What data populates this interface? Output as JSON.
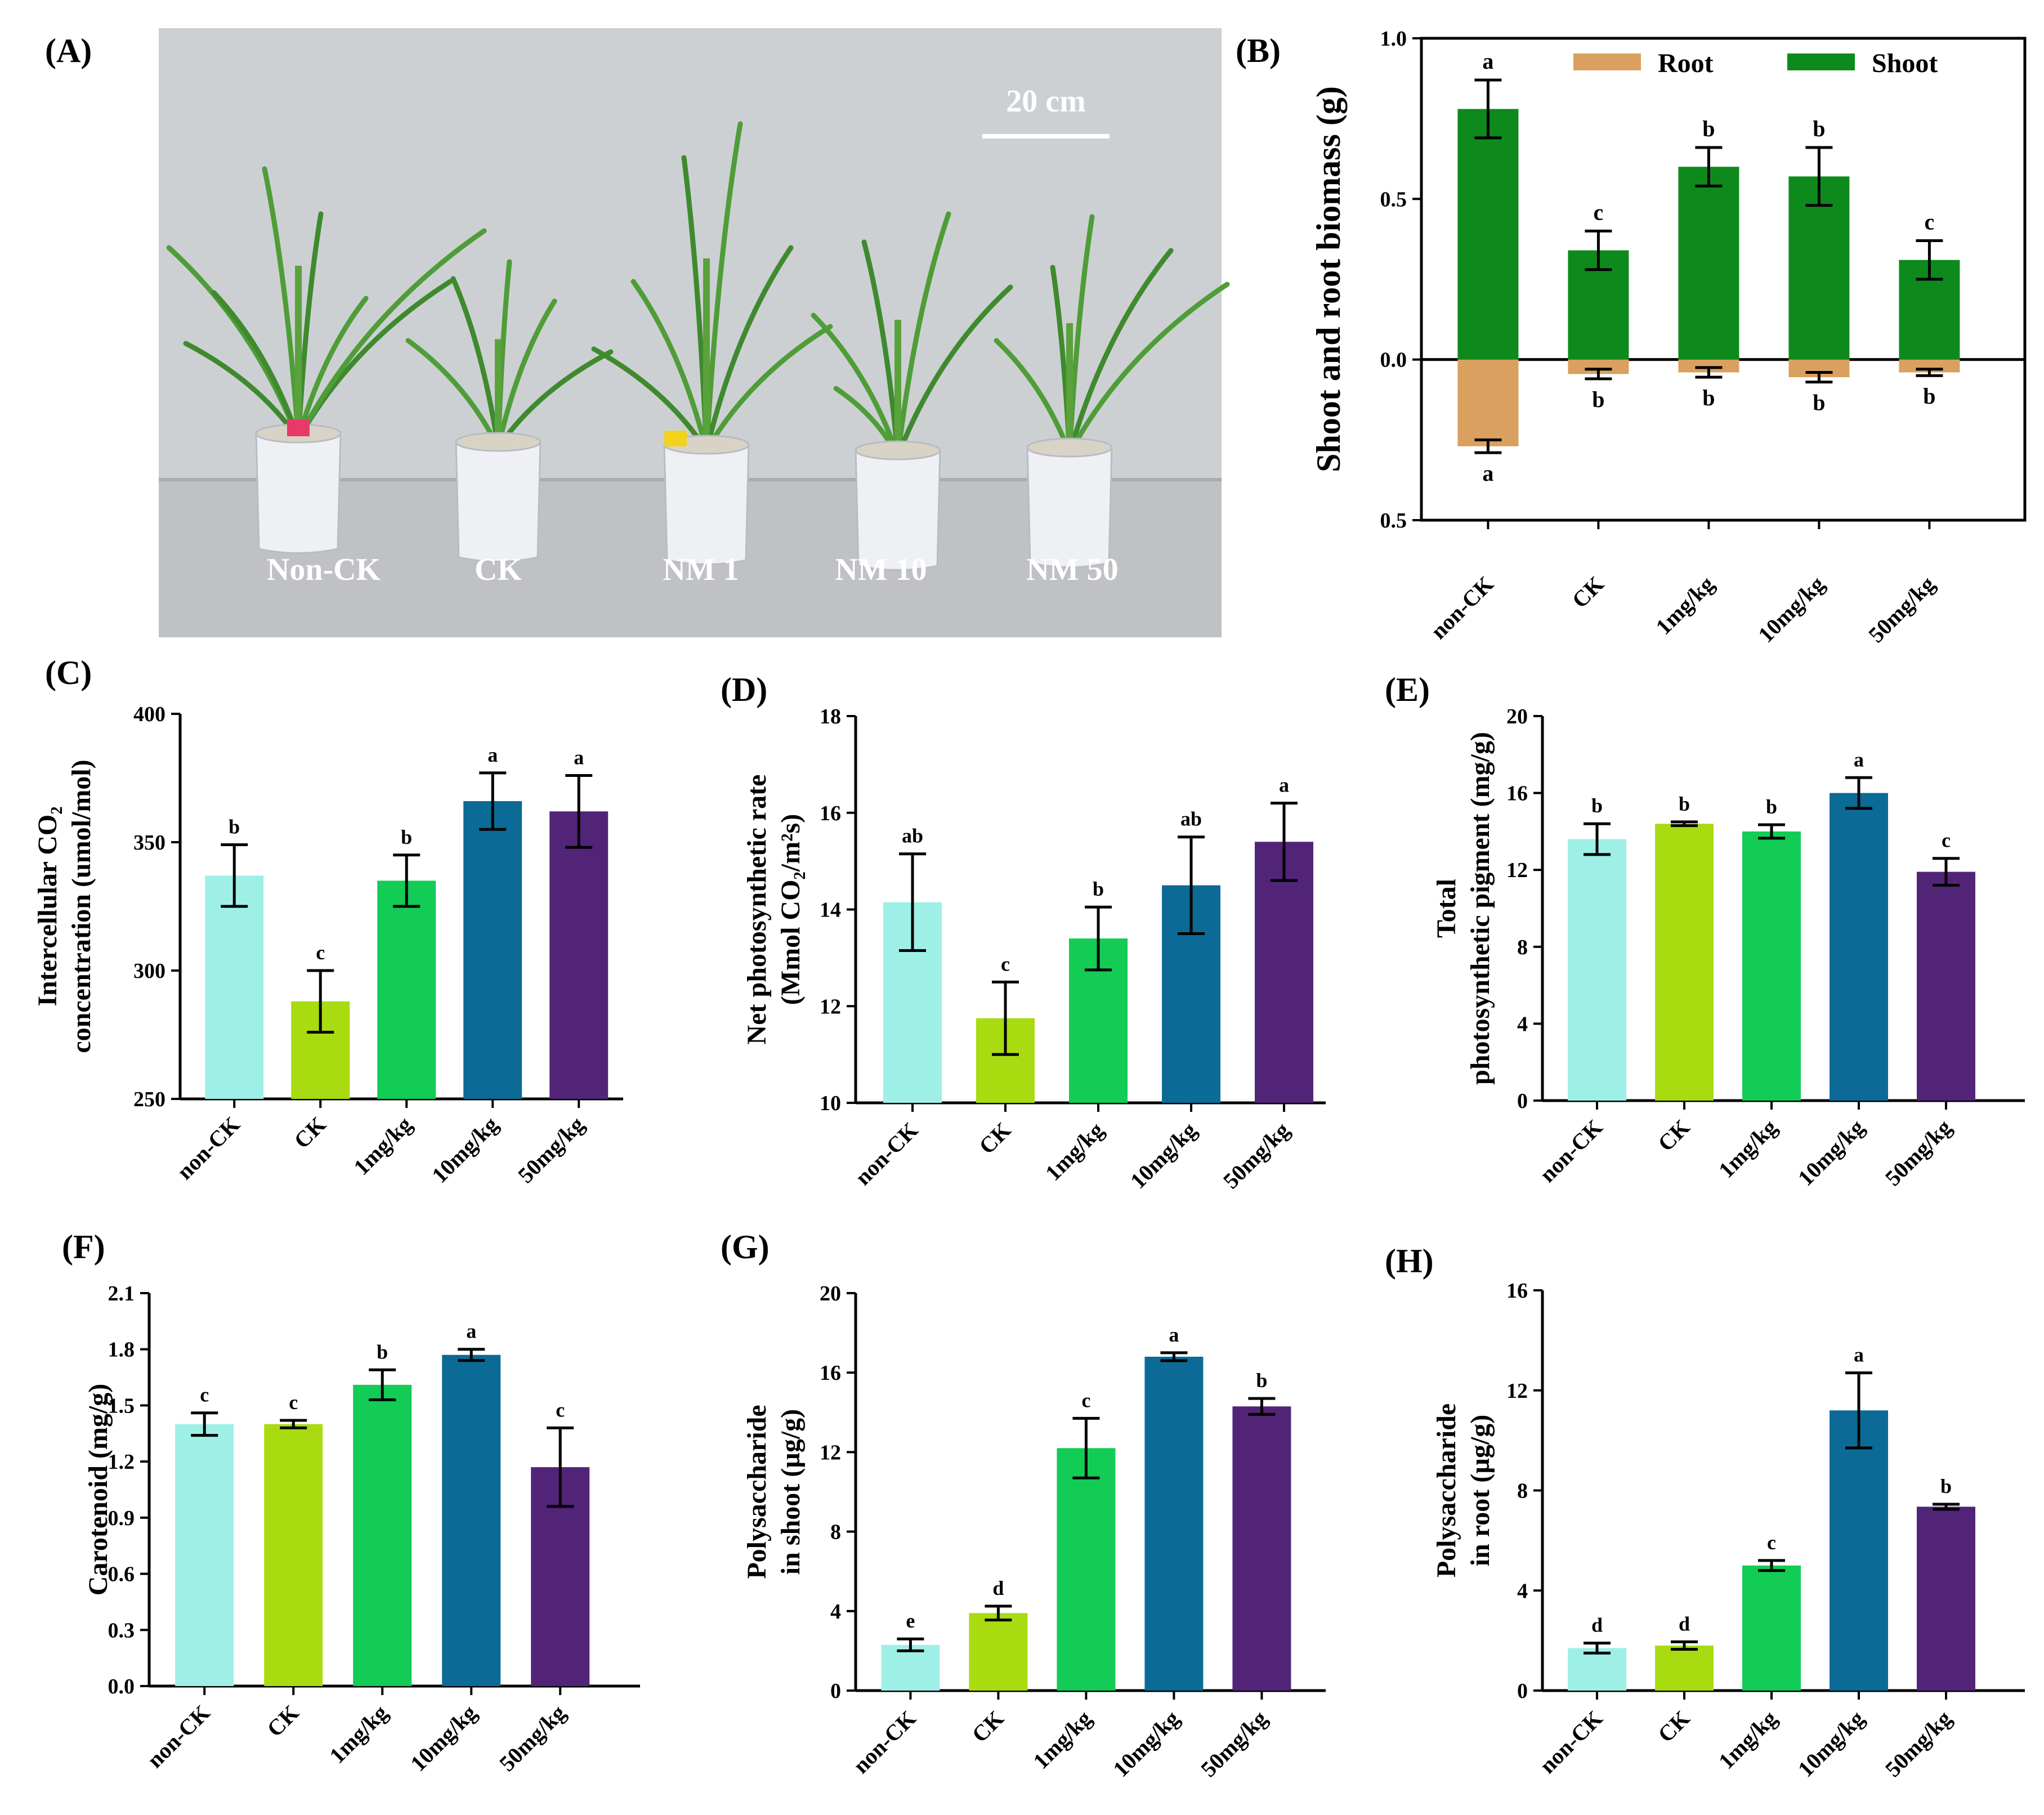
{
  "panels": {
    "A": "(A)",
    "B": "(B)",
    "C": "(C)",
    "D": "(D)",
    "E": "(E)",
    "F": "(F)",
    "G": "(G)",
    "H": "(H)"
  },
  "photo": {
    "scale_bar": "20 cm",
    "labels": [
      "Non-CK",
      "CK",
      "NM 1",
      "NM 10",
      "NM 50"
    ]
  },
  "colors": {
    "non_ck": "#9ef0e6",
    "ck": "#a8dc10",
    "nm1": "#12cc55",
    "nm10": "#0b6b96",
    "nm50": "#522478",
    "shoot": "#0e8a1c",
    "root": "#d9a060"
  },
  "chart_data": [
    {
      "id": "B",
      "type": "bar",
      "title": "",
      "ylabel": "Shoot and root biomass (g)",
      "categories": [
        "non-CK",
        "CK",
        "1mg/kg",
        "10mg/kg",
        "50mg/kg"
      ],
      "ylim": [
        -0.5,
        1.0
      ],
      "ticks": [
        -0.5,
        0.0,
        0.5,
        1.0
      ],
      "tick_labels": [
        "0.5",
        "0.0",
        "0.5",
        "1.0"
      ],
      "legend": [
        "Root",
        "Shoot"
      ],
      "series": [
        {
          "name": "Shoot",
          "values": [
            0.78,
            0.34,
            0.6,
            0.57,
            0.31
          ],
          "errors": [
            0.09,
            0.06,
            0.06,
            0.09,
            0.06
          ],
          "labels": [
            "a",
            "c",
            "b",
            "b",
            "c"
          ]
        },
        {
          "name": "Root",
          "values": [
            -0.27,
            -0.045,
            -0.04,
            -0.055,
            -0.04
          ],
          "errors": [
            0.02,
            0.015,
            0.015,
            0.015,
            0.01
          ],
          "labels": [
            "a",
            "b",
            "b",
            "b",
            "b"
          ]
        }
      ]
    },
    {
      "id": "C",
      "type": "bar",
      "ylabel_lines": [
        "Intercellular CO₂",
        "concentration (umol/mol)"
      ],
      "categories": [
        "non-CK",
        "CK",
        "1mg/kg",
        "10mg/kg",
        "50mg/kg"
      ],
      "ylim": [
        250,
        400
      ],
      "ticks": [
        250,
        300,
        350,
        400
      ],
      "tick_labels": [
        "250",
        "300",
        "350",
        "400"
      ],
      "values": [
        337,
        288,
        335,
        366,
        362
      ],
      "errors": [
        12,
        12,
        10,
        11,
        14
      ],
      "labels": [
        "b",
        "c",
        "b",
        "a",
        "a"
      ]
    },
    {
      "id": "D",
      "type": "bar",
      "ylabel_lines": [
        "Net photosynthetic rate",
        "(Mmol CO₂/m²s)"
      ],
      "categories": [
        "non-CK",
        "CK",
        "1mg/kg",
        "10mg/kg",
        "50mg/kg"
      ],
      "ylim": [
        10,
        18
      ],
      "ticks": [
        10,
        12,
        14,
        16,
        18
      ],
      "tick_labels": [
        "10",
        "12",
        "14",
        "16",
        "18"
      ],
      "values": [
        14.15,
        11.75,
        13.4,
        14.5,
        15.4
      ],
      "errors": [
        1.0,
        0.75,
        0.65,
        1.0,
        0.8
      ],
      "labels": [
        "ab",
        "c",
        "b",
        "ab",
        "a"
      ]
    },
    {
      "id": "E",
      "type": "bar",
      "ylabel_lines": [
        "Total",
        "photosynthetic pigment (mg/g)"
      ],
      "categories": [
        "non-CK",
        "CK",
        "1mg/kg",
        "10mg/kg",
        "50mg/kg"
      ],
      "ylim": [
        0,
        20
      ],
      "ticks": [
        0,
        4,
        8,
        12,
        16,
        20
      ],
      "tick_labels": [
        "0",
        "4",
        "8",
        "12",
        "16",
        "20"
      ],
      "values": [
        13.6,
        14.4,
        14.0,
        16.0,
        11.9
      ],
      "errors": [
        0.8,
        0.1,
        0.35,
        0.8,
        0.7
      ],
      "labels": [
        "b",
        "b",
        "b",
        "a",
        "c"
      ]
    },
    {
      "id": "F",
      "type": "bar",
      "ylabel_lines": [
        "Carotenoid (mg/g)"
      ],
      "categories": [
        "non-CK",
        "CK",
        "1mg/kg",
        "10mg/kg",
        "50mg/kg"
      ],
      "ylim": [
        0,
        2.1
      ],
      "ticks": [
        0,
        0.3,
        0.6,
        0.9,
        1.2,
        1.5,
        1.8,
        2.1
      ],
      "tick_labels": [
        "0.0",
        "0.3",
        "0.6",
        "0.9",
        "1.2",
        "1.5",
        "1.8",
        "2.1"
      ],
      "values": [
        1.4,
        1.4,
        1.61,
        1.77,
        1.17
      ],
      "errors": [
        0.06,
        0.02,
        0.08,
        0.03,
        0.21
      ],
      "labels": [
        "c",
        "c",
        "b",
        "a",
        "c"
      ]
    },
    {
      "id": "G",
      "type": "bar",
      "ylabel_lines": [
        "Polysaccharide",
        "in shoot (µg/g)"
      ],
      "categories": [
        "non-CK",
        "CK",
        "1mg/kg",
        "10mg/kg",
        "50mg/kg"
      ],
      "ylim": [
        0,
        20
      ],
      "ticks": [
        0,
        4,
        8,
        12,
        16,
        20
      ],
      "tick_labels": [
        "0",
        "4",
        "8",
        "12",
        "16",
        "20"
      ],
      "values": [
        2.3,
        3.9,
        12.2,
        16.8,
        14.3
      ],
      "errors": [
        0.3,
        0.35,
        1.5,
        0.2,
        0.4
      ],
      "labels": [
        "e",
        "d",
        "c",
        "a",
        "b"
      ]
    },
    {
      "id": "H",
      "type": "bar",
      "ylabel_lines": [
        "Polysaccharide",
        "in root (µg/g)"
      ],
      "categories": [
        "non-CK",
        "CK",
        "1mg/kg",
        "10mg/kg",
        "50mg/kg"
      ],
      "ylim": [
        0,
        16
      ],
      "ticks": [
        0,
        4,
        8,
        12,
        16
      ],
      "tick_labels": [
        "0",
        "4",
        "8",
        "12",
        "16"
      ],
      "values": [
        1.7,
        1.8,
        5.0,
        11.2,
        7.35
      ],
      "errors": [
        0.2,
        0.15,
        0.2,
        1.5,
        0.1
      ],
      "labels": [
        "d",
        "d",
        "c",
        "a",
        "b"
      ]
    }
  ]
}
